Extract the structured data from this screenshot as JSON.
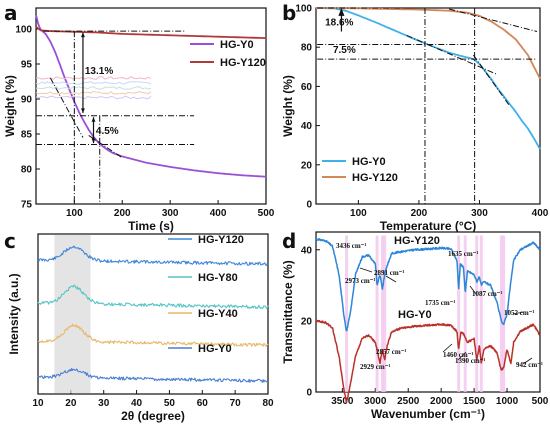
{
  "panels": {
    "a": {
      "letter": "a"
    },
    "b": {
      "letter": "b"
    },
    "c": {
      "letter": "c"
    },
    "d": {
      "letter": "d"
    }
  },
  "chart_data": [
    {
      "id": "a",
      "type": "line",
      "xlabel": "Time (s)",
      "ylabel": "Weight (%)",
      "xlim": [
        20,
        500
      ],
      "ylim": [
        75,
        103
      ],
      "xticks": [
        100,
        200,
        300,
        400,
        500
      ],
      "yticks": [
        75,
        80,
        85,
        90,
        95,
        100
      ],
      "series": [
        {
          "name": "HG-Y0",
          "color": "#9b4fd6",
          "x": [
            20,
            25,
            30,
            40,
            50,
            60,
            70,
            80,
            90,
            100,
            110,
            120,
            130,
            140,
            150,
            160,
            170,
            180,
            200,
            250,
            300,
            350,
            400,
            450,
            500
          ],
          "y": [
            102.0,
            100.6,
            99.9,
            99.3,
            98.2,
            96.7,
            94.9,
            93.0,
            91.3,
            89.6,
            88.1,
            86.8,
            85.6,
            84.6,
            83.8,
            83.2,
            82.7,
            82.3,
            81.8,
            80.9,
            80.3,
            79.8,
            79.4,
            79.1,
            78.9
          ]
        },
        {
          "name": "HG-Y120",
          "color": "#b03a3a",
          "x": [
            20,
            30,
            50,
            100,
            150,
            200,
            250,
            300,
            350,
            400,
            450,
            500
          ],
          "y": [
            100.3,
            99.8,
            99.7,
            99.6,
            99.5,
            99.3,
            99.2,
            99.1,
            99.0,
            98.9,
            98.8,
            98.7
          ]
        }
      ],
      "annotations": [
        "13.1%",
        "4.5%"
      ]
    },
    {
      "id": "b",
      "type": "line",
      "xlabel": "Temperature (°C)",
      "ylabel": "Weight (%)",
      "xlim": [
        30,
        400
      ],
      "ylim": [
        0,
        100
      ],
      "xticks": [
        100,
        200,
        300,
        400
      ],
      "yticks": [
        0,
        20,
        40,
        60,
        80,
        100
      ],
      "series": [
        {
          "name": "HG-Y0",
          "color": "#3fb1ea",
          "x": [
            30,
            60,
            80,
            100,
            130,
            160,
            190,
            210,
            230,
            250,
            270,
            290,
            300,
            310,
            320,
            330,
            340,
            350,
            360,
            370,
            380,
            390,
            400
          ],
          "y": [
            100,
            99.8,
            98.5,
            96.2,
            92.5,
            88.5,
            84.5,
            82.0,
            79.5,
            77.2,
            75.5,
            74.0,
            71.5,
            67.5,
            63.5,
            59.0,
            55.0,
            51.0,
            47.0,
            42.5,
            38.5,
            33.5,
            28.0
          ]
        },
        {
          "name": "HG-Y120",
          "color": "#d4875a",
          "x": [
            30,
            60,
            100,
            150,
            200,
            250,
            280,
            300,
            320,
            340,
            360,
            380,
            400
          ],
          "y": [
            100,
            100,
            99.8,
            99.5,
            99.2,
            98.6,
            97.6,
            96.0,
            93.0,
            89.0,
            84.0,
            76.0,
            64.0
          ]
        }
      ],
      "annotations": [
        "18.6%",
        "7.5%"
      ]
    },
    {
      "id": "c",
      "type": "line",
      "xlabel": "2θ (degree)",
      "ylabel": "Intensity (a.u.)",
      "xlim": [
        10,
        80
      ],
      "xticks": [
        10,
        20,
        30,
        40,
        50,
        60,
        70,
        80
      ],
      "highlight_range": [
        15,
        26
      ],
      "series": [
        {
          "name": "HG-Y120",
          "color": "#3f86d8"
        },
        {
          "name": "HG-Y80",
          "color": "#56c4c4"
        },
        {
          "name": "HG-Y40",
          "color": "#e8b86a"
        },
        {
          "name": "HG-Y0",
          "color": "#4a7fd0"
        }
      ]
    },
    {
      "id": "d",
      "type": "line",
      "xlabel": "Wavenumber (cm⁻¹)",
      "ylabel": "Transmittance (%)",
      "xlim": [
        3900,
        500
      ],
      "ylim": [
        0,
        45
      ],
      "xticks": [
        3500,
        3000,
        2500,
        2000,
        1500,
        1000,
        500
      ],
      "yticks": [
        0,
        20,
        40
      ],
      "series": [
        {
          "name": "HG-Y120",
          "color": "#2e86d6"
        },
        {
          "name": "HG-Y0",
          "color": "#b8322a"
        }
      ],
      "peak_labels": [
        "3436 cm⁻¹",
        "2973 cm⁻¹",
        "2891 cm⁻¹",
        "1635 cm⁻¹",
        "1735 cm⁻¹",
        "1087 cm⁻¹",
        "1052 cm⁻¹",
        "2929 cm⁻¹",
        "2857 cm⁻¹",
        "1460 cm⁻¹",
        "1390 cm⁻¹",
        "942 cm⁻¹"
      ]
    }
  ]
}
